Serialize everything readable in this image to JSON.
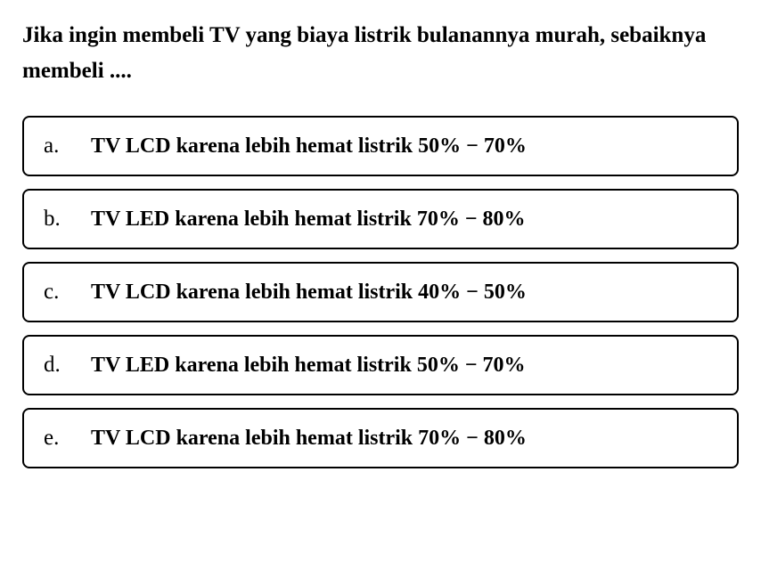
{
  "question": {
    "text": "Jika ingin membeli TV yang biaya listrik bulanannya murah, sebaiknya membeli ....",
    "fontsize": 25,
    "fontweight": "bold",
    "color": "#000000"
  },
  "options": [
    {
      "letter": "a.",
      "text": "TV LCD karena lebih hemat listrik 50% − 70%"
    },
    {
      "letter": "b.",
      "text": "TV LED karena lebih hemat listrik 70% − 80%"
    },
    {
      "letter": "c.",
      "text": "TV LCD karena lebih hemat listrik 40% − 50%"
    },
    {
      "letter": "d.",
      "text": "TV LED karena lebih hemat listrik 50% − 70%"
    },
    {
      "letter": "e.",
      "text": "TV LCD karena lebih hemat listrik 70% − 80%"
    }
  ],
  "styling": {
    "background_color": "#ffffff",
    "border_color": "#000000",
    "border_width": 2.5,
    "border_radius": 8,
    "option_fontsize": 24,
    "option_fontweight": "bold",
    "letter_fontsize": 25,
    "letter_fontweight": "normal",
    "font_family": "Times New Roman",
    "option_gap": 14,
    "option_padding": "18px 22px"
  }
}
